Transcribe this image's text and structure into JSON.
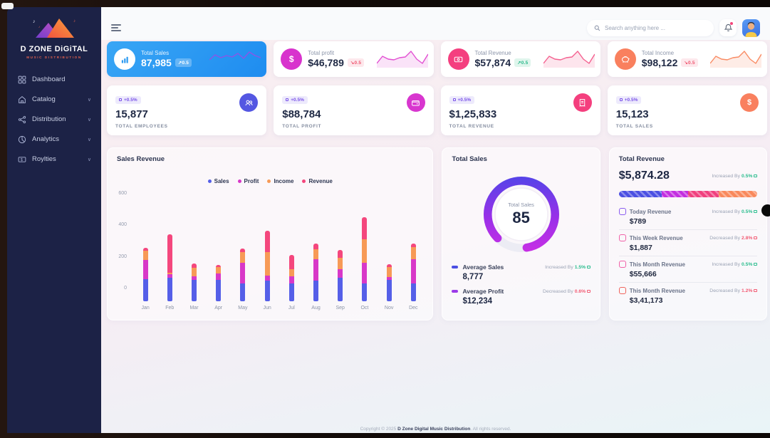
{
  "sidebar": {
    "logo_title": "D ZONE DiGiTAL",
    "logo_subtitle": "MUSIC DISTRIBUTION",
    "items": [
      {
        "label": "Dashboard",
        "icon": "dashboard-icon",
        "chevron": false
      },
      {
        "label": "Catalog",
        "icon": "catalog-icon",
        "chevron": true
      },
      {
        "label": "Distribution",
        "icon": "distribution-icon",
        "chevron": true
      },
      {
        "label": "Analytics",
        "icon": "analytics-icon",
        "chevron": true
      },
      {
        "label": "Roylties",
        "icon": "royalties-icon",
        "chevron": true
      }
    ]
  },
  "topbar": {
    "search_placeholder": "Search anything here ...",
    "icons": [
      "hamburger-icon",
      "search-icon",
      "notification-bell-icon",
      "user-avatar"
    ]
  },
  "stat_cards_row1": [
    {
      "title": "Total Sales",
      "value": "87,985",
      "badge": "↗0.5",
      "trend": "up",
      "icon": "bar-chart-icon",
      "accent": "#2f9cf1",
      "spark_color": "#8a55e8",
      "spark": [
        15,
        8,
        12,
        9,
        11,
        6,
        13,
        4,
        9,
        12
      ]
    },
    {
      "title": "Total profit",
      "value": "$46,789",
      "badge": "↘0.5",
      "trend": "down",
      "icon": "dollar-icon",
      "accent": "#d833cd",
      "spark_color": "#e24fd2",
      "spark_fill": "rgba(226,79,210,0.16)",
      "spark": [
        20,
        10,
        14,
        15,
        12,
        11,
        3,
        14,
        20,
        7
      ]
    },
    {
      "title": "Total Revenue",
      "value": "$57,874",
      "badge": "↗0.5",
      "trend": "up",
      "icon": "banknote-icon",
      "accent": "#f43f7f",
      "spark_color": "#f4608f",
      "spark_fill": "rgba(244,96,143,0.16)",
      "spark": [
        20,
        10,
        14,
        15,
        12,
        11,
        3,
        14,
        20,
        7
      ]
    },
    {
      "title": "Total Income",
      "value": "$98,122",
      "badge": "↘0.5",
      "trend": "down",
      "icon": "piggy-bank-icon",
      "accent": "#f9805e",
      "spark_color": "#f98b63",
      "spark_fill": "rgba(249,139,99,0.16)",
      "spark": [
        20,
        10,
        14,
        15,
        12,
        11,
        3,
        14,
        20,
        7
      ]
    }
  ],
  "stat_cards_row2": [
    {
      "badge": "+0.5%",
      "value": "15,877",
      "label": "TOTAL EMPLOYEES",
      "icon": "users-icon",
      "icon_color": "#5457e2"
    },
    {
      "badge": "+0.5%",
      "value": "$88,784",
      "label": "TOTAL PROFIT",
      "icon": "wallet-icon",
      "icon_color": "#d836cf"
    },
    {
      "badge": "+0.5%",
      "value": "$1,25,833",
      "label": "TOTAL REVENUE",
      "icon": "receipt-icon",
      "icon_color": "#f43f7e"
    },
    {
      "badge": "+0.5%",
      "value": "15,123",
      "label": "TOTAL SALES",
      "icon": "dollar-icon",
      "icon_color": "#f9805f"
    }
  ],
  "sales_revenue": {
    "title": "Sales Revenue"
  },
  "chart_data": [
    {
      "type": "bar",
      "stacked": true,
      "title": "Sales Revenue",
      "categories": [
        "Jan",
        "Feb",
        "Mar",
        "Apr",
        "May",
        "Jun",
        "Jul",
        "Aug",
        "Sep",
        "Oct",
        "Nov",
        "Dec"
      ],
      "series": [
        {
          "name": "Sales",
          "color": "#555fe8",
          "values": [
            140,
            145,
            135,
            135,
            110,
            130,
            110,
            128,
            147,
            113,
            132,
            113
          ]
        },
        {
          "name": "Profit",
          "color": "#d838c8",
          "values": [
            120,
            25,
            20,
            40,
            128,
            30,
            45,
            135,
            53,
            129,
            20,
            150
          ]
        },
        {
          "name": "Income",
          "color": "#f79a56",
          "values": [
            55,
            8,
            52,
            38,
            70,
            145,
            45,
            60,
            72,
            146,
            60,
            75
          ]
        },
        {
          "name": "Revenue",
          "color": "#f4477d",
          "values": [
            18,
            240,
            27,
            14,
            20,
            135,
            87,
            38,
            48,
            135,
            18,
            20
          ]
        }
      ],
      "yticks": [
        0,
        200,
        400,
        600
      ],
      "ylim": [
        0,
        600
      ],
      "legend_position": "top",
      "grid": false
    },
    {
      "type": "donut",
      "title": "Total Sales",
      "center_label": "Total Sales",
      "value": 85,
      "max": 100,
      "arc_colors": [
        "#4548e8",
        "#9b30e8",
        "#d62ee4"
      ],
      "track_color": "#ececf4"
    }
  ],
  "total_sales_panel": {
    "title": "Total Sales",
    "center_label": "Total Sales",
    "center_value": "85",
    "rows": [
      {
        "label": "Average Sales",
        "value": "8,777",
        "trend_prefix": "Increased By",
        "trend_value": "1.5%",
        "direction": "up",
        "marker_color": "#4b4fe2"
      },
      {
        "label": "Average Profit",
        "value": "$12,234",
        "trend_prefix": "Decreased By",
        "trend_value": "0.6%",
        "direction": "down",
        "marker_color": "#9b3be8"
      }
    ]
  },
  "total_revenue_panel": {
    "title": "Total Revenue",
    "amount": "$5,874.28",
    "trend_prefix": "Increased By",
    "trend_value": "0.5%",
    "direction": "up",
    "bar_segments": [
      {
        "color": "#4b4fe2",
        "pct": 31
      },
      {
        "color": "#c32ee0",
        "pct": 19
      },
      {
        "color": "#f0407e",
        "pct": 22
      },
      {
        "color": "#f9895c",
        "pct": 28
      }
    ],
    "rows": [
      {
        "label": "Today Revenue",
        "value": "$789",
        "trend_prefix": "Increased By",
        "trend_value": "0.5%",
        "direction": "up",
        "icon_color": "#8a5cf0"
      },
      {
        "label": "This Week Revenue",
        "value": "$1,887",
        "trend_prefix": "Decreased By",
        "trend_value": "2.8%",
        "direction": "down",
        "icon_color": "#f062a8"
      },
      {
        "label": "This Month Revenue",
        "value": "$55,666",
        "trend_prefix": "Increased By",
        "trend_value": "0.5%",
        "direction": "up",
        "icon_color": "#f062a8"
      },
      {
        "label": "This Month Revenue",
        "value": "$3,41,173",
        "trend_prefix": "Decreased By",
        "trend_value": "1.2%",
        "direction": "down",
        "icon_color": "#f0645c"
      }
    ]
  },
  "footer": {
    "prefix": "Copyright © 2025 ",
    "brand": "D Zone Digital Music Distribution",
    "suffix": ". All rights reserved."
  }
}
